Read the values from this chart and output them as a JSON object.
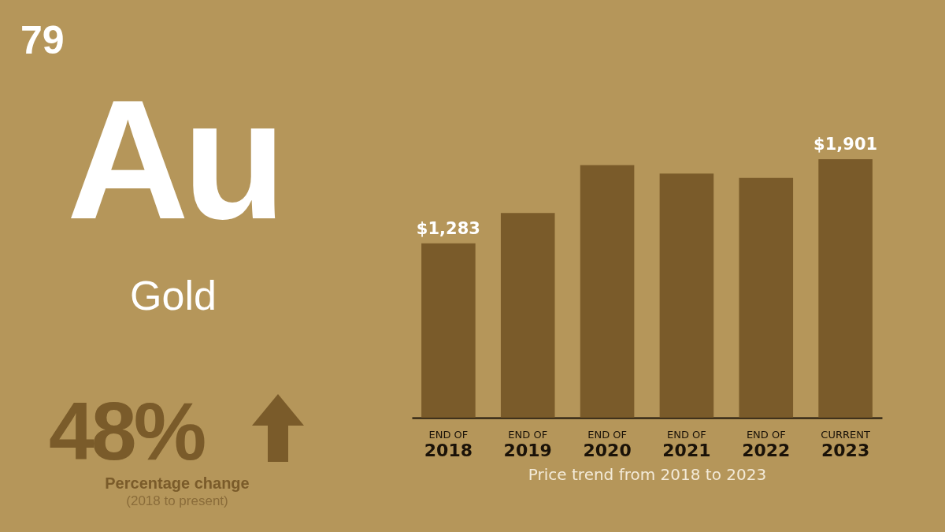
{
  "chart_data": {
    "type": "bar",
    "categories": [
      "END OF 2018",
      "END OF 2019",
      "END OF 2020",
      "END OF 2021",
      "END OF 2022",
      "CURRENT 2023"
    ],
    "values": [
      1283,
      1506,
      1857,
      1795,
      1763,
      1901
    ],
    "value_labels": [
      "$1,283",
      null,
      null,
      null,
      null,
      "$1,901"
    ],
    "color": "#7a5b2a",
    "tick_labels": "x",
    "xlabel": "Price trend from 2018 to 2023",
    "annotations": [
      "79",
      "Au",
      "Gold",
      "48%",
      "Percentage change",
      "(2018 to present)"
    ]
  }
}
